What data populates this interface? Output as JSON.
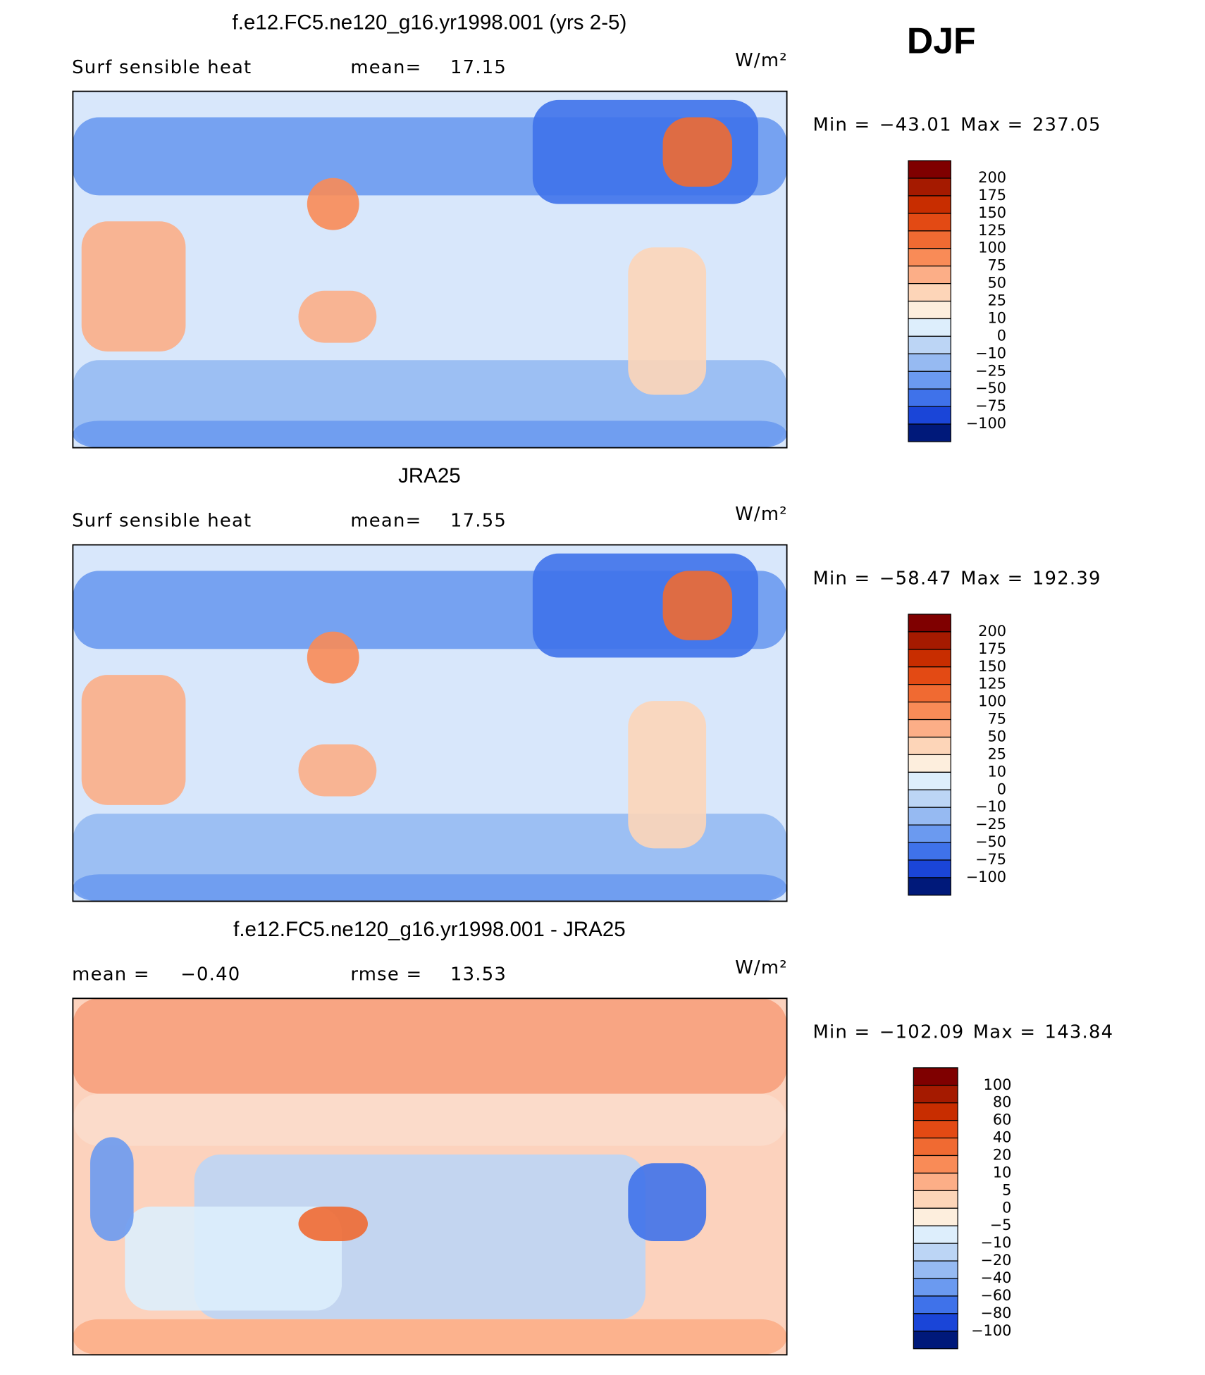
{
  "season": "DJF",
  "panels": [
    {
      "title": "f.e12.FC5.ne120_g16.yr1998.001 (yrs 2-5)",
      "stats": [
        {
          "label": "Surf  sensible heat"
        },
        {
          "label": "mean=",
          "value": "17.15"
        }
      ],
      "units": "W/m²",
      "min_label": "Min =",
      "min": "−43.01",
      "max_label": "Max =",
      "max": "237.05",
      "colorbar": {
        "labels": [
          "200",
          "175",
          "150",
          "125",
          "100",
          "75",
          "50",
          "25",
          "10",
          "0",
          "−10",
          "−25",
          "−50",
          "−75",
          "−100"
        ],
        "colors": [
          "#7f0000",
          "#a51a00",
          "#c82d00",
          "#e34a14",
          "#f06a32",
          "#f98b57",
          "#fcae87",
          "#fdd5b8",
          "#fdeedd",
          "#ddeefc",
          "#bcd5f5",
          "#96baf2",
          "#6b9af0",
          "#3f72ea",
          "#1a45d8",
          "#00197a"
        ]
      }
    },
    {
      "title": "JRA25",
      "stats": [
        {
          "label": "Surf  sensible heat"
        },
        {
          "label": "mean=",
          "value": "17.55"
        }
      ],
      "units": "W/m²",
      "min_label": "Min =",
      "min": "−58.47",
      "max_label": "Max =",
      "max": "192.39",
      "colorbar": {
        "labels": [
          "200",
          "175",
          "150",
          "125",
          "100",
          "75",
          "50",
          "25",
          "10",
          "0",
          "−10",
          "−25",
          "−50",
          "−75",
          "−100"
        ],
        "colors": [
          "#7f0000",
          "#a51a00",
          "#c82d00",
          "#e34a14",
          "#f06a32",
          "#f98b57",
          "#fcae87",
          "#fdd5b8",
          "#fdeedd",
          "#ddeefc",
          "#bcd5f5",
          "#96baf2",
          "#6b9af0",
          "#3f72ea",
          "#1a45d8",
          "#00197a"
        ]
      }
    },
    {
      "title": "f.e12.FC5.ne120_g16.yr1998.001 - JRA25",
      "stats": [
        {
          "label": "mean =",
          "value": "−0.40"
        },
        {
          "label": "rmse =",
          "value": "13.53"
        }
      ],
      "units": "W/m²",
      "min_label": "Min =",
      "min": "−102.09",
      "max_label": "Max =",
      "max": "143.84",
      "colorbar": {
        "labels": [
          "100",
          "80",
          "60",
          "40",
          "20",
          "10",
          "5",
          "0",
          "−5",
          "−10",
          "−20",
          "−40",
          "−60",
          "−80",
          "−100"
        ],
        "colors": [
          "#7f0000",
          "#a51a00",
          "#c82d00",
          "#e34a14",
          "#f06a32",
          "#f98b57",
          "#fcae87",
          "#fdd5b8",
          "#fdeedd",
          "#ddeefc",
          "#bcd5f5",
          "#96baf2",
          "#6b9af0",
          "#3f72ea",
          "#1a45d8",
          "#00197a"
        ]
      }
    }
  ]
}
